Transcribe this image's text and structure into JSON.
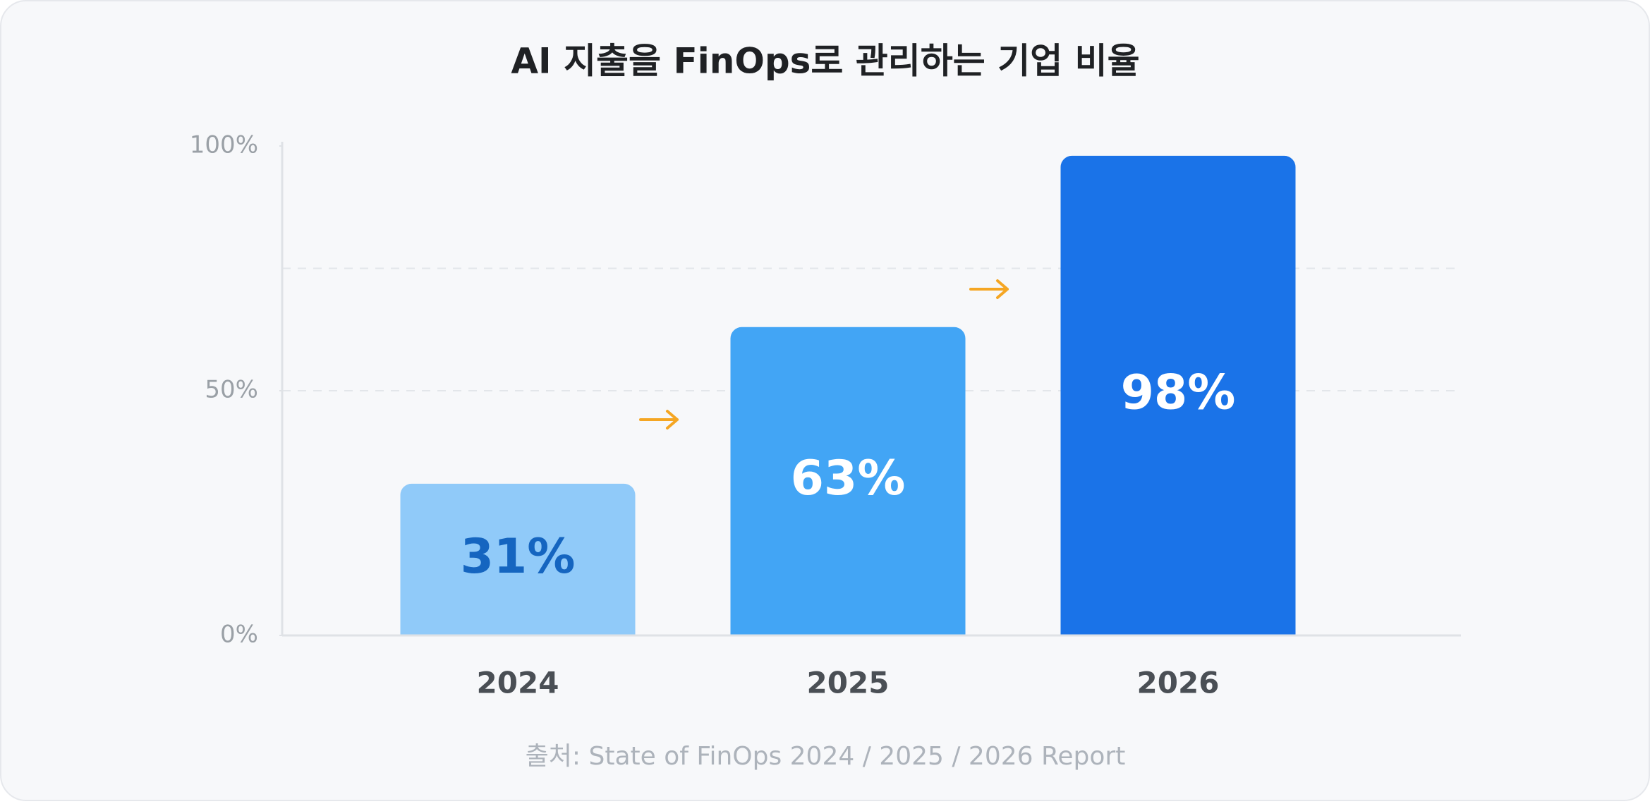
{
  "chart_data": {
    "type": "bar",
    "title": "AI 지출을 FinOps로 관리하는 기업 비율",
    "categories": [
      "2024",
      "2025",
      "2026"
    ],
    "values": [
      31,
      63,
      98
    ],
    "value_labels": [
      "31%",
      "63%",
      "98%"
    ],
    "colors": [
      "#90caf9",
      "#42a5f5",
      "#1a73e8"
    ],
    "label_colors": [
      "#1565c0",
      "#ffffff",
      "#ffffff"
    ],
    "ylim": [
      0,
      100
    ],
    "yticks": [
      {
        "value": 0,
        "label": "0%"
      },
      {
        "value": 50,
        "label": "50%"
      },
      {
        "value": 100,
        "label": "100%"
      }
    ],
    "gridlines": [
      50,
      75
    ],
    "grid": true,
    "source": "출처: State of FinOps 2024 / 2025 / 2026 Report"
  }
}
